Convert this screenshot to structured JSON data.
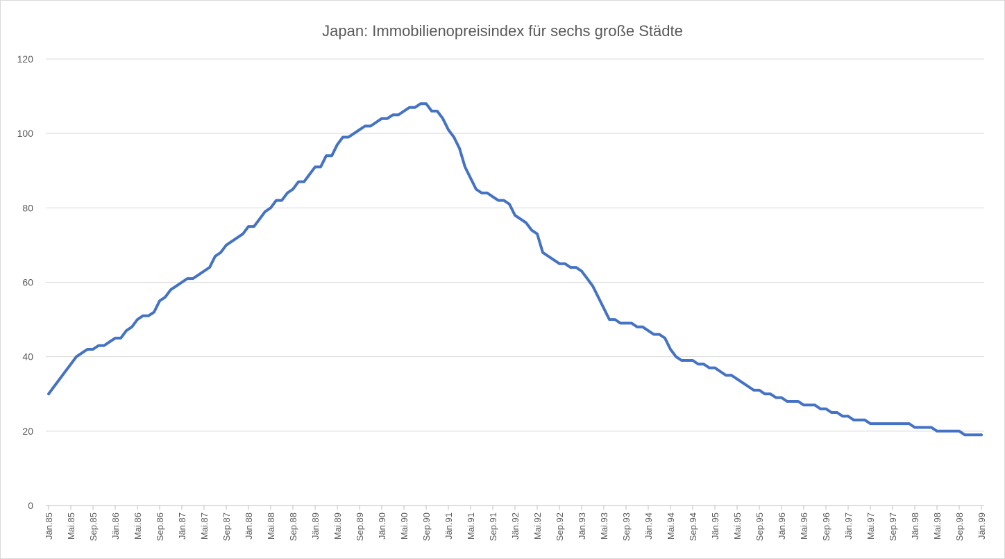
{
  "chart_data": {
    "type": "line",
    "title": "Japan: Immobilienopreisindex für sechs große Städte",
    "categories": [
      "Jän.85",
      null,
      null,
      null,
      "Mai.85",
      null,
      null,
      null,
      "Sep.85",
      null,
      null,
      null,
      "Jän.86",
      null,
      null,
      null,
      "Mai.86",
      null,
      null,
      null,
      "Sep.86",
      null,
      null,
      null,
      "Jän.87",
      null,
      null,
      null,
      "Mai.87",
      null,
      null,
      null,
      "Sep.87",
      null,
      null,
      null,
      "Jän.88",
      null,
      null,
      null,
      "Mai.88",
      null,
      null,
      null,
      "Sep.88",
      null,
      null,
      null,
      "Jän.89",
      null,
      null,
      null,
      "Mai.89",
      null,
      null,
      null,
      "Sep.89",
      null,
      null,
      null,
      "Jän.90",
      null,
      null,
      null,
      "Mai.90",
      null,
      null,
      null,
      "Sep.90",
      null,
      null,
      null,
      "Jän.91",
      null,
      null,
      null,
      "Mai.91",
      null,
      null,
      null,
      "Sep.91",
      null,
      null,
      null,
      "Jän.92",
      null,
      null,
      null,
      "Mai.92",
      null,
      null,
      null,
      "Sep.92",
      null,
      null,
      null,
      "Jän.93",
      null,
      null,
      null,
      "Mai.93",
      null,
      null,
      null,
      "Sep.93",
      null,
      null,
      null,
      "Jän.94",
      null,
      null,
      null,
      "Mai.94",
      null,
      null,
      null,
      "Sep.94",
      null,
      null,
      null,
      "Jän.95",
      null,
      null,
      null,
      "Mai.95",
      null,
      null,
      null,
      "Sep.95",
      null,
      null,
      null,
      "Jän.96",
      null,
      null,
      null,
      "Mai.96",
      null,
      null,
      null,
      "Sep.96",
      null,
      null,
      null,
      "Jän.97",
      null,
      null,
      null,
      "Mai.97",
      null,
      null,
      null,
      "Sep.97",
      null,
      null,
      null,
      "Jän.98",
      null,
      null,
      null,
      "Mai.98",
      null,
      null,
      null,
      "Sep.98",
      null,
      null,
      null,
      "Jän.99"
    ],
    "values": [
      30,
      32,
      34,
      36,
      38,
      40,
      41,
      42,
      42,
      43,
      43,
      44,
      45,
      45,
      47,
      48,
      50,
      51,
      51,
      52,
      55,
      56,
      58,
      59,
      60,
      61,
      61,
      62,
      63,
      64,
      67,
      68,
      70,
      71,
      72,
      73,
      75,
      75,
      77,
      79,
      80,
      82,
      82,
      84,
      85,
      87,
      87,
      89,
      91,
      91,
      94,
      94,
      97,
      99,
      99,
      100,
      101,
      102,
      102,
      103,
      104,
      104,
      105,
      105,
      106,
      107,
      107,
      108,
      108,
      106,
      106,
      104,
      101,
      99,
      96,
      91,
      88,
      85,
      84,
      84,
      83,
      82,
      82,
      81,
      78,
      77,
      76,
      74,
      73,
      68,
      67,
      66,
      65,
      65,
      64,
      64,
      63,
      61,
      59,
      56,
      53,
      50,
      50,
      49,
      49,
      49,
      48,
      48,
      47,
      46,
      46,
      45,
      42,
      40,
      39,
      39,
      39,
      38,
      38,
      37,
      37,
      36,
      35,
      35,
      34,
      33,
      32,
      31,
      31,
      30,
      30,
      29,
      29,
      28,
      28,
      28,
      27,
      27,
      27,
      26,
      26,
      25,
      25,
      24,
      24,
      23,
      23,
      23,
      22,
      22,
      22,
      22,
      22,
      22,
      22,
      22,
      21,
      21,
      21,
      21,
      20,
      20,
      20,
      20,
      20,
      19,
      19,
      19,
      19
    ],
    "color": "#4472c4",
    "ylim": [
      0,
      120
    ],
    "yticks": [
      0,
      20,
      40,
      60,
      80,
      100,
      120
    ],
    "grid": true
  }
}
